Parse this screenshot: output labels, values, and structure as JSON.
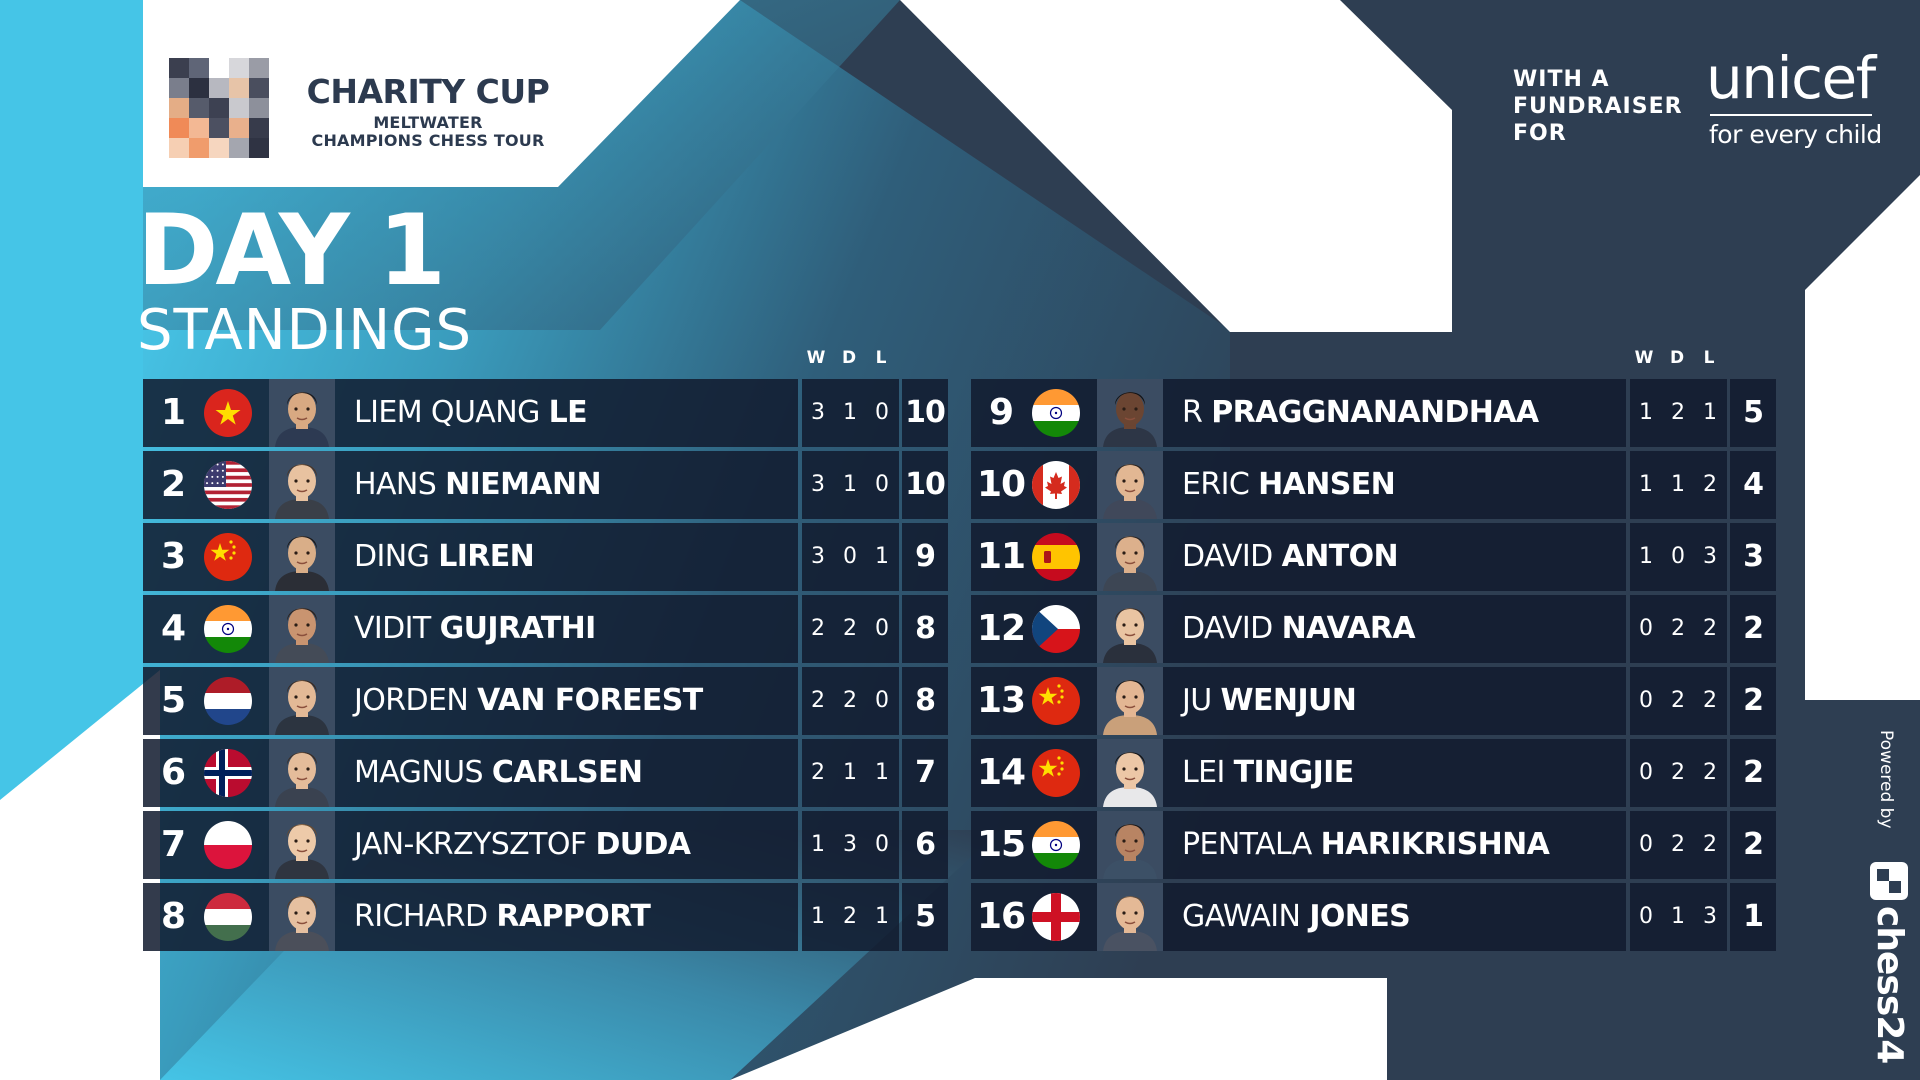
{
  "logo": {
    "title": "CHARITY CUP",
    "subtitle_line1": "MELTWATER",
    "subtitle_line2": "CHAMPIONS CHESS TOUR",
    "mark_icon": "charity-cup-logo-mark"
  },
  "fundraiser": {
    "line1": "WITH A",
    "line2": "FUNDRAISER",
    "line3": "FOR",
    "brand": "unicef",
    "tagline": "for every child"
  },
  "heading": {
    "title": "DAY 1",
    "subtitle": "STANDINGS"
  },
  "columns": {
    "w": "W",
    "d": "D",
    "l": "L"
  },
  "standings": [
    {
      "rank": "1",
      "first": "LIEM QUANG ",
      "last": "LE",
      "flag": "vietnam-flag",
      "w": "3",
      "d": "1",
      "l": "0",
      "pts": "10"
    },
    {
      "rank": "2",
      "first": "HANS ",
      "last": "NIEMANN",
      "flag": "usa-flag",
      "w": "3",
      "d": "1",
      "l": "0",
      "pts": "10"
    },
    {
      "rank": "3",
      "first": "DING ",
      "last": "LIREN",
      "flag": "china-flag",
      "w": "3",
      "d": "0",
      "l": "1",
      "pts": "9"
    },
    {
      "rank": "4",
      "first": "VIDIT ",
      "last": "GUJRATHI",
      "flag": "india-flag",
      "w": "2",
      "d": "2",
      "l": "0",
      "pts": "8"
    },
    {
      "rank": "5",
      "first": "JORDEN ",
      "last": "VAN FOREEST",
      "flag": "netherlands-flag",
      "w": "2",
      "d": "2",
      "l": "0",
      "pts": "8"
    },
    {
      "rank": "6",
      "first": "MAGNUS ",
      "last": "CARLSEN",
      "flag": "norway-flag",
      "w": "2",
      "d": "1",
      "l": "1",
      "pts": "7"
    },
    {
      "rank": "7",
      "first": "JAN-KRZYSZTOF ",
      "last": "DUDA",
      "flag": "poland-flag",
      "w": "1",
      "d": "3",
      "l": "0",
      "pts": "6"
    },
    {
      "rank": "8",
      "first": "RICHARD ",
      "last": "RAPPORT",
      "flag": "hungary-flag",
      "w": "1",
      "d": "2",
      "l": "1",
      "pts": "5"
    },
    {
      "rank": "9",
      "first": "R ",
      "last": "PRAGGNANANDHAA",
      "flag": "india-flag",
      "w": "1",
      "d": "2",
      "l": "1",
      "pts": "5"
    },
    {
      "rank": "10",
      "first": "ERIC ",
      "last": "HANSEN",
      "flag": "canada-flag",
      "w": "1",
      "d": "1",
      "l": "2",
      "pts": "4"
    },
    {
      "rank": "11",
      "first": "DAVID ",
      "last": "ANTON",
      "flag": "spain-flag",
      "w": "1",
      "d": "0",
      "l": "3",
      "pts": "3"
    },
    {
      "rank": "12",
      "first": "DAVID ",
      "last": "NAVARA",
      "flag": "czech-flag",
      "w": "0",
      "d": "2",
      "l": "2",
      "pts": "2"
    },
    {
      "rank": "13",
      "first": "JU ",
      "last": "WENJUN",
      "flag": "china-flag",
      "w": "0",
      "d": "2",
      "l": "2",
      "pts": "2"
    },
    {
      "rank": "14",
      "first": "LEI ",
      "last": "TINGJIE",
      "flag": "china-flag",
      "w": "0",
      "d": "2",
      "l": "2",
      "pts": "2"
    },
    {
      "rank": "15",
      "first": "PENTALA ",
      "last": "HARIKRISHNA",
      "flag": "india-flag",
      "w": "0",
      "d": "2",
      "l": "2",
      "pts": "2"
    },
    {
      "rank": "16",
      "first": "GAWAIN ",
      "last": "JONES",
      "flag": "england-flag",
      "w": "0",
      "d": "1",
      "l": "3",
      "pts": "1"
    }
  ],
  "footer": {
    "powered_by": "Powered by",
    "brand": "chess24",
    "brand_icon": "chess24-logo-icon"
  },
  "colors": {
    "background_dark": "#2e3e52",
    "accent_cyan": "#45c4e6",
    "row_bg": "#121b2e",
    "logo_text": "#2c3a4f"
  }
}
